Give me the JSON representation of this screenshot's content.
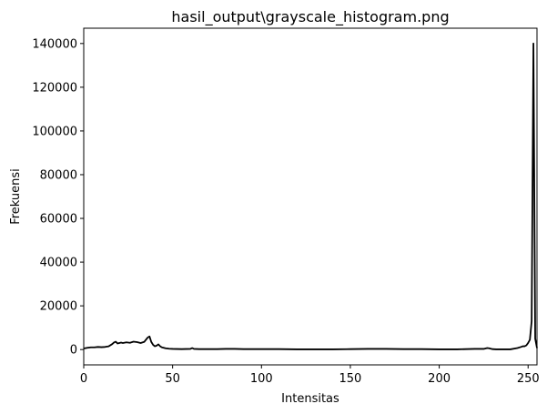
{
  "chart_data": {
    "type": "line",
    "title": "hasil_output\\grayscale_histogram.png",
    "xlabel": "Intensitas",
    "ylabel": "Frekuensi",
    "xlim": [
      0,
      255
    ],
    "ylim": [
      -7000,
      147000
    ],
    "x_ticks": [
      0,
      50,
      100,
      150,
      200,
      250
    ],
    "x_tick_labels": [
      "0",
      "50",
      "100",
      "150",
      "200",
      "250"
    ],
    "y_ticks": [
      0,
      20000,
      40000,
      60000,
      80000,
      100000,
      120000,
      140000
    ],
    "y_tick_labels": [
      "0",
      "20000",
      "40000",
      "60000",
      "80000",
      "100000",
      "120000",
      "140000"
    ],
    "grid": false,
    "legend": "none",
    "line_color": "#000000",
    "series": [
      {
        "x": [
          0,
          2,
          4,
          6,
          8,
          10,
          12,
          14,
          16,
          17,
          18,
          19,
          20,
          21,
          22,
          24,
          26,
          28,
          30,
          32,
          34,
          36,
          37,
          38,
          39,
          40,
          41,
          42,
          43,
          44,
          46,
          48,
          50,
          55,
          60,
          61,
          62,
          65,
          70,
          75,
          80,
          85,
          90,
          95,
          100,
          110,
          120,
          130,
          140,
          150,
          160,
          170,
          180,
          190,
          200,
          205,
          210,
          215,
          220,
          225,
          226,
          227,
          228,
          230,
          232,
          235,
          240,
          244,
          246,
          247,
          248,
          249,
          250,
          251,
          252,
          253,
          254,
          255
        ],
        "y": [
          500,
          800,
          1000,
          1000,
          1200,
          1100,
          1200,
          1500,
          2500,
          3200,
          3600,
          2800,
          3000,
          3200,
          3000,
          3300,
          3100,
          3600,
          3400,
          3000,
          3500,
          5500,
          6000,
          3500,
          2200,
          1500,
          1800,
          2400,
          1500,
          1000,
          600,
          400,
          300,
          200,
          300,
          700,
          300,
          200,
          200,
          200,
          300,
          300,
          200,
          200,
          200,
          200,
          100,
          100,
          100,
          200,
          300,
          300,
          200,
          200,
          100,
          100,
          100,
          200,
          300,
          300,
          500,
          700,
          600,
          200,
          100,
          100,
          100,
          700,
          1200,
          1500,
          1500,
          1900,
          3000,
          4500,
          13000,
          140000,
          5000,
          700
        ]
      }
    ]
  }
}
